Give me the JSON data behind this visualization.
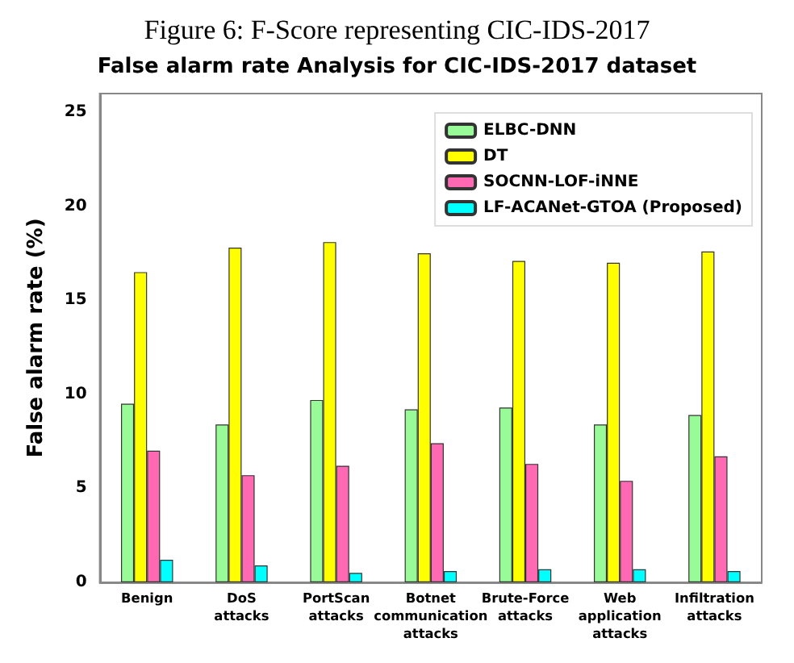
{
  "chart_data": {
    "type": "bar",
    "title": "False alarm rate Analysis for CIC-IDS-2017 dataset",
    "annotations": [
      "Figure 6: F-Score representing CIC-IDS-2017"
    ],
    "ylabel": "False alarm rate (%)",
    "categories": [
      "Benign",
      "DoS attacks",
      "PortScan attacks",
      "Botnet communication attacks",
      "Brute-Force attacks",
      "Web application attacks",
      "Infiltration attacks"
    ],
    "series": [
      {
        "name": "ELBC-DNN",
        "color": "#98fb98",
        "values": [
          9.5,
          8.4,
          9.7,
          9.2,
          9.3,
          8.4,
          8.9
        ]
      },
      {
        "name": "DT",
        "color": "#ffff00",
        "values": [
          16.5,
          17.8,
          18.1,
          17.5,
          17.1,
          17.0,
          17.6
        ]
      },
      {
        "name": "SOCNN-LOF-iNNE",
        "color": "#ff69b4",
        "values": [
          7.0,
          5.7,
          6.2,
          7.4,
          6.3,
          5.4,
          6.7
        ]
      },
      {
        "name": "LF-ACANet-GTOA (Proposed)",
        "color": "#00ffff",
        "values": [
          1.2,
          0.9,
          0.5,
          0.6,
          0.7,
          0.7,
          0.6
        ]
      }
    ],
    "ylim": [
      0,
      26
    ],
    "yticks": [
      0,
      5,
      10,
      15,
      20,
      25
    ],
    "legend": "top right",
    "grid": false
  }
}
